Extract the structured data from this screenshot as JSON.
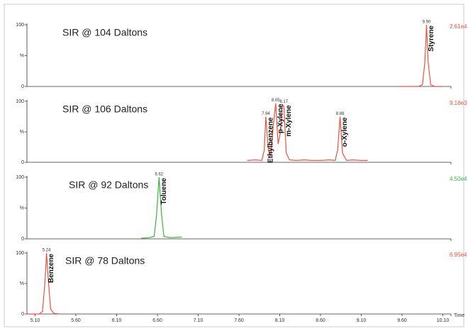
{
  "chart_data": [
    {
      "type": "line",
      "title": "SIR @ 104 Daltons",
      "scale_label": "2.61e4",
      "color": "#f0503c",
      "xlim": [
        5.0,
        10.2
      ],
      "ylim": [
        0,
        100
      ],
      "yticks": [
        100,
        {
          "value": 50,
          "label": "%"
        },
        0
      ],
      "x": [
        9.57,
        9.8,
        9.85,
        9.88,
        9.9,
        9.92,
        9.95,
        10.0,
        10.1
      ],
      "values": [
        0,
        0,
        3,
        40,
        100,
        40,
        3,
        0,
        0
      ],
      "annotations": [
        {
          "label": "Styrene",
          "rt_label": "9.90",
          "x": 9.9,
          "y": 100
        }
      ]
    },
    {
      "type": "line",
      "title": "SIR @ 106 Daltons",
      "scale_label": "9.18e3",
      "color": "#f0503c",
      "xlim": [
        5.0,
        10.2
      ],
      "ylim": [
        0,
        100
      ],
      "yticks": [
        100,
        {
          "value": 50,
          "label": "%"
        },
        0
      ],
      "x": [
        7.7,
        7.8,
        7.88,
        7.91,
        7.93,
        7.96,
        7.99,
        8.02,
        8.05,
        8.08,
        8.11,
        8.13,
        8.15,
        8.18,
        8.22,
        8.3,
        8.4,
        8.5,
        8.6,
        8.7,
        8.78,
        8.81,
        8.84,
        8.87,
        8.92,
        9.0,
        9.1,
        9.18
      ],
      "values": [
        3,
        4,
        3,
        20,
        75,
        20,
        10,
        60,
        97,
        30,
        50,
        95,
        92,
        15,
        4,
        3,
        4,
        3,
        3,
        4,
        3,
        20,
        75,
        15,
        3,
        4,
        3,
        3
      ],
      "annotations": [
        {
          "label": "Ethylbenzene",
          "rt_label": "7.94",
          "x": 7.93,
          "y": 75
        },
        {
          "label": "p-Xylene",
          "rt_label": "8.05",
          "x": 8.05,
          "y": 97
        },
        {
          "label": "m-Xylene",
          "rt_label": "8.17",
          "x": 8.15,
          "y": 95
        },
        {
          "label": "o-Xylene",
          "rt_label": "8.88",
          "x": 8.84,
          "y": 75
        }
      ]
    },
    {
      "type": "line",
      "title": "SIR @ 92 Daltons",
      "scale_label": "4.50e4",
      "color": "#3cb43c",
      "xlim": [
        5.0,
        10.2
      ],
      "ylim": [
        0,
        100
      ],
      "yticks": [
        100,
        {
          "value": 50,
          "label": "%"
        },
        0
      ],
      "x": [
        6.4,
        6.5,
        6.56,
        6.59,
        6.62,
        6.65,
        6.68,
        6.75,
        6.9
      ],
      "values": [
        1,
        2,
        4,
        40,
        100,
        40,
        4,
        2,
        3
      ],
      "annotations": [
        {
          "label": "Toluene",
          "rt_label": "6.62",
          "x": 6.62,
          "y": 100
        }
      ]
    },
    {
      "type": "line",
      "title": "SIR @ 78 Daltons",
      "scale_label": "6.95e4",
      "color": "#f0503c",
      "xlim": [
        5.0,
        10.2
      ],
      "ylim": [
        0,
        100
      ],
      "yticks": [
        100,
        {
          "value": 50,
          "label": "%"
        },
        0
      ],
      "x": [
        5.02,
        5.15,
        5.19,
        5.22,
        5.24,
        5.26,
        5.29,
        5.33,
        5.4
      ],
      "values": [
        0,
        0,
        4,
        50,
        100,
        60,
        8,
        1,
        0
      ],
      "annotations": [
        {
          "label": "Benzene",
          "rt_label": "5.24",
          "x": 5.24,
          "y": 100
        }
      ],
      "xlabel": "Time",
      "xticks": [
        {
          "value": 5.1,
          "label": "5.10"
        },
        {
          "value": 5.6,
          "label": "5.60"
        },
        {
          "value": 6.1,
          "label": "6.10"
        },
        {
          "value": 6.6,
          "label": "6.60"
        },
        {
          "value": 7.1,
          "label": "7.10"
        },
        {
          "value": 7.6,
          "label": "7.60"
        },
        {
          "value": 8.1,
          "label": "8.10"
        },
        {
          "value": 8.6,
          "label": "8.60"
        },
        {
          "value": 9.1,
          "label": "9.10"
        },
        {
          "value": 9.6,
          "label": "9.60"
        },
        {
          "value": 10.1,
          "label": "10.10"
        }
      ]
    }
  ]
}
